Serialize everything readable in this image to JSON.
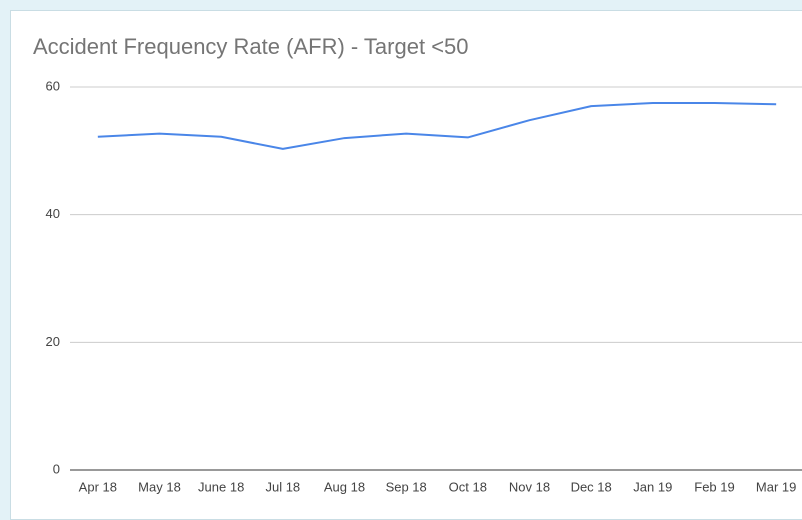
{
  "chart_data": {
    "type": "line",
    "title": "Accident Frequency Rate (AFR) - Target <50",
    "categories": [
      "Apr 18",
      "May 18",
      "June 18",
      "Jul 18",
      "Aug 18",
      "Sep 18",
      "Oct 18",
      "Nov 18",
      "Dec 18",
      "Jan 19",
      "Feb 19",
      "Mar 19"
    ],
    "series": [
      {
        "name": "AFR",
        "color": "#4a86e8",
        "values": [
          52.2,
          52.7,
          52.2,
          50.3,
          52.0,
          52.7,
          52.1,
          54.8,
          57.0,
          57.5,
          57.5,
          57.3
        ]
      }
    ],
    "ylim": [
      0,
      60
    ],
    "yticks": [
      0,
      20,
      40,
      60
    ],
    "grid": true
  }
}
